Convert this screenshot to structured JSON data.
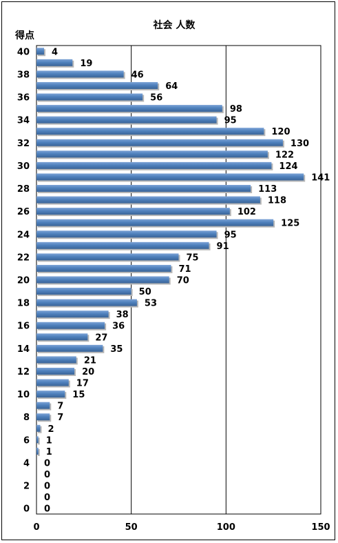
{
  "chart_data": {
    "type": "bar",
    "orientation": "horizontal",
    "title": "社会 人数",
    "ylabel": "得点",
    "xlabel": "",
    "categories": [
      40,
      39,
      38,
      37,
      36,
      35,
      34,
      33,
      32,
      31,
      30,
      29,
      28,
      27,
      26,
      25,
      24,
      23,
      22,
      21,
      20,
      19,
      18,
      17,
      16,
      15,
      14,
      13,
      12,
      11,
      10,
      9,
      8,
      7,
      6,
      5,
      4,
      3,
      2,
      1,
      0
    ],
    "values": [
      4,
      19,
      46,
      64,
      56,
      98,
      95,
      120,
      130,
      122,
      124,
      141,
      113,
      118,
      102,
      125,
      95,
      91,
      75,
      71,
      70,
      50,
      53,
      38,
      36,
      27,
      35,
      21,
      20,
      17,
      15,
      7,
      7,
      2,
      1,
      1,
      0,
      0,
      0,
      0,
      0
    ],
    "category_tick_labels": [
      "40",
      "38",
      "36",
      "34",
      "32",
      "30",
      "28",
      "26",
      "24",
      "22",
      "20",
      "18",
      "16",
      "14",
      "12",
      "10",
      "8",
      "6",
      "4",
      "2",
      "0"
    ],
    "xlim": [
      0,
      150
    ],
    "x_ticks": [
      0,
      50,
      100,
      150
    ],
    "grid": "vertical",
    "legend": "none",
    "bar_color": "#4f81bd"
  }
}
